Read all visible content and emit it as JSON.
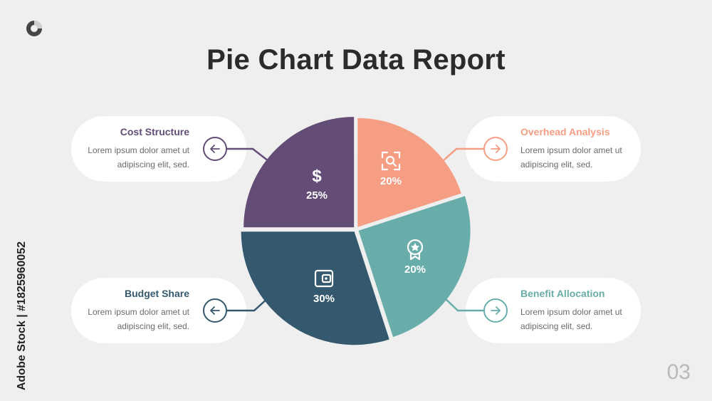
{
  "title": "Pie Chart Data Report",
  "page_number": "03",
  "side_text": "Adobe Stock | #1825960052",
  "colors": {
    "purple": "#634d77",
    "salmon": "#f59e83",
    "teal": "#69adab",
    "navy": "#34586e"
  },
  "cards": [
    {
      "title": "Cost Structure",
      "line1": "Lorem ipsum dolor amet ut",
      "line2": "adipiscing elit, sed.",
      "color": "#634d77",
      "arrow": "left"
    },
    {
      "title": "Overhead Analysis",
      "line1": "Lorem ipsum dolor amet ut",
      "line2": "adipiscing elit, sed.",
      "color": "#f59e83",
      "arrow": "right"
    },
    {
      "title": "Budget Share",
      "line1": "Lorem ipsum dolor amet ut",
      "line2": "adipiscing elit, sed.",
      "color": "#34586e",
      "arrow": "left"
    },
    {
      "title": "Benefit Allocation",
      "line1": "Lorem ipsum dolor amet ut",
      "line2": "adipiscing elit, sed.",
      "color": "#69adab",
      "arrow": "right"
    }
  ],
  "chart_data": {
    "type": "pie",
    "categories": [
      "Cost Structure",
      "Overhead Analysis",
      "Benefit Allocation",
      "Budget Share"
    ],
    "values": [
      25,
      20,
      20,
      30
    ],
    "labels": [
      "25%",
      "20%",
      "20%",
      "30%"
    ],
    "icons": [
      "dollar-icon",
      "search-icon",
      "award-icon",
      "wallet-icon"
    ],
    "colors": [
      "#634d77",
      "#f59e83",
      "#69adab",
      "#34586e"
    ],
    "title": "Pie Chart Data Report"
  }
}
